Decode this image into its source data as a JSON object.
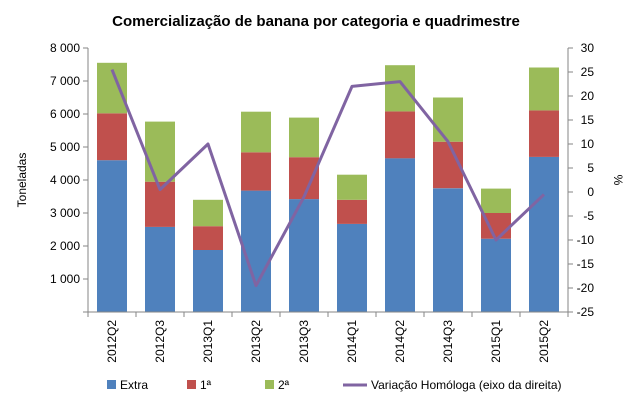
{
  "chart_data": {
    "type": "bar",
    "stacked": true,
    "title": "Comercialização  de banana  por categoria  e quadrimestre",
    "ylabel": "Toneladas",
    "y2label": "%",
    "ylim": [
      0,
      8000
    ],
    "y2lim": [
      -25,
      30
    ],
    "yticks": [
      0,
      1000,
      2000,
      3000,
      4000,
      5000,
      6000,
      7000,
      8000
    ],
    "ytick_labels": [
      "",
      "1 000",
      "2 000",
      "3 000",
      "4 000",
      "5 000",
      "6 000",
      "7 000",
      "8 000"
    ],
    "y2ticks": [
      -25,
      -20,
      -15,
      -10,
      -5,
      0,
      5,
      10,
      15,
      20,
      25,
      30
    ],
    "categories": [
      "2012Q2",
      "2012Q3",
      "2013Q1",
      "2013Q2",
      "2013Q3",
      "2014Q1",
      "2014Q2",
      "2014Q3",
      "2015Q1",
      "2015Q2"
    ],
    "series": [
      {
        "name": "Extra",
        "color": "#4F81BD",
        "values": [
          4600,
          2580,
          1880,
          3680,
          3420,
          2670,
          4660,
          3750,
          2220,
          4700
        ]
      },
      {
        "name": "1ª",
        "color": "#C0504D",
        "values": [
          1420,
          1370,
          720,
          1160,
          1270,
          730,
          1420,
          1410,
          780,
          1410
        ]
      },
      {
        "name": "2ª",
        "color": "#9BBB59",
        "values": [
          1530,
          1820,
          800,
          1230,
          1200,
          760,
          1400,
          1340,
          740,
          1300
        ]
      }
    ],
    "line_series": {
      "name": "Variação Homóloga (eixo da direita)",
      "color": "#8064A2",
      "axis": "right",
      "values": [
        25.5,
        0.5,
        10,
        -19.5,
        -1,
        22,
        23,
        10.5,
        -10,
        -0.5
      ]
    },
    "legend_position": "bottom",
    "grid": false
  }
}
